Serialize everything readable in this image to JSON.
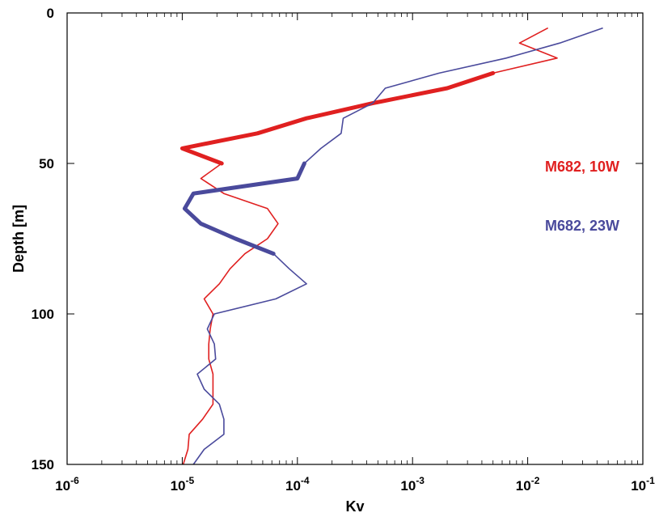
{
  "chart_data": {
    "type": "line",
    "title": "",
    "xlabel": "Kv",
    "ylabel": "Depth [m]",
    "x_scale": "log",
    "xlim": [
      1e-06,
      0.1
    ],
    "ylim": [
      0,
      150
    ],
    "y_reversed": true,
    "x_ticks": [
      {
        "value": 1e-06,
        "base": "10",
        "exp": "-6"
      },
      {
        "value": 1e-05,
        "base": "10",
        "exp": "-5"
      },
      {
        "value": 0.0001,
        "base": "10",
        "exp": "-4"
      },
      {
        "value": 0.001,
        "base": "10",
        "exp": "-3"
      },
      {
        "value": 0.01,
        "base": "10",
        "exp": "-2"
      },
      {
        "value": 0.1,
        "base": "10",
        "exp": "-1"
      }
    ],
    "y_ticks": [
      {
        "value": 0,
        "label": "0"
      },
      {
        "value": 50,
        "label": "50"
      },
      {
        "value": 100,
        "label": "100"
      },
      {
        "value": 150,
        "label": "150"
      }
    ],
    "grid": false,
    "legend_placement": "right",
    "series": [
      {
        "name": "M682, 10W",
        "color": "#e02020",
        "thin": [
          [
            0.015,
            5
          ],
          [
            0.0085,
            10
          ],
          [
            0.018,
            15
          ],
          [
            0.005,
            20
          ],
          [
            0.002,
            25
          ],
          [
            0.00045,
            30
          ],
          [
            0.00012,
            35
          ],
          [
            4.5e-05,
            40
          ],
          [
            1e-05,
            45
          ],
          [
            2.2e-05,
            50
          ],
          [
            1.45e-05,
            55
          ],
          [
            2.3e-05,
            60
          ],
          [
            5.5e-05,
            65
          ],
          [
            6.8e-05,
            70
          ],
          [
            5.5e-05,
            75
          ],
          [
            3.5e-05,
            80
          ],
          [
            2.6e-05,
            85
          ],
          [
            2.1e-05,
            90
          ],
          [
            1.55e-05,
            95
          ],
          [
            1.85e-05,
            100
          ],
          [
            1.75e-05,
            105
          ],
          [
            1.7e-05,
            110
          ],
          [
            1.7e-05,
            115
          ],
          [
            1.85e-05,
            120
          ],
          [
            1.85e-05,
            125
          ],
          [
            1.85e-05,
            130
          ],
          [
            1.5e-05,
            135
          ],
          [
            1.15e-05,
            140
          ],
          [
            1.12e-05,
            145
          ],
          [
            1.02e-05,
            150
          ]
        ],
        "thick": [
          [
            0.005,
            20
          ],
          [
            0.002,
            25
          ],
          [
            0.00045,
            30
          ],
          [
            0.00012,
            35
          ],
          [
            4.5e-05,
            40
          ],
          [
            1e-05,
            45
          ],
          [
            2.2e-05,
            50
          ]
        ]
      },
      {
        "name": "M682, 23W",
        "color": "#4a4a9c",
        "thin": [
          [
            0.045,
            5
          ],
          [
            0.019,
            10
          ],
          [
            0.0065,
            15
          ],
          [
            0.0017,
            20
          ],
          [
            0.00058,
            25
          ],
          [
            0.00045,
            30
          ],
          [
            0.00025,
            35
          ],
          [
            0.00024,
            40
          ],
          [
            0.00016,
            45
          ],
          [
            0.000115,
            50
          ],
          [
            0.0001,
            55
          ],
          [
            1.25e-05,
            60
          ],
          [
            1.05e-05,
            65
          ],
          [
            1.45e-05,
            70
          ],
          [
            2.9e-05,
            75
          ],
          [
            6.2e-05,
            80
          ],
          [
            8.5e-05,
            85
          ],
          [
            0.00012,
            90
          ],
          [
            6.5e-05,
            95
          ],
          [
            1.9e-05,
            100
          ],
          [
            1.65e-05,
            105
          ],
          [
            1.9e-05,
            110
          ],
          [
            1.95e-05,
            115
          ],
          [
            1.35e-05,
            120
          ],
          [
            1.55e-05,
            125
          ],
          [
            2.1e-05,
            130
          ],
          [
            2.3e-05,
            135
          ],
          [
            2.3e-05,
            140
          ],
          [
            1.55e-05,
            145
          ],
          [
            1.25e-05,
            150
          ]
        ],
        "thick": [
          [
            0.000115,
            50
          ],
          [
            0.0001,
            55
          ],
          [
            1.25e-05,
            60
          ],
          [
            1.05e-05,
            65
          ],
          [
            1.45e-05,
            70
          ],
          [
            2.9e-05,
            75
          ],
          [
            6.2e-05,
            80
          ]
        ]
      }
    ]
  }
}
